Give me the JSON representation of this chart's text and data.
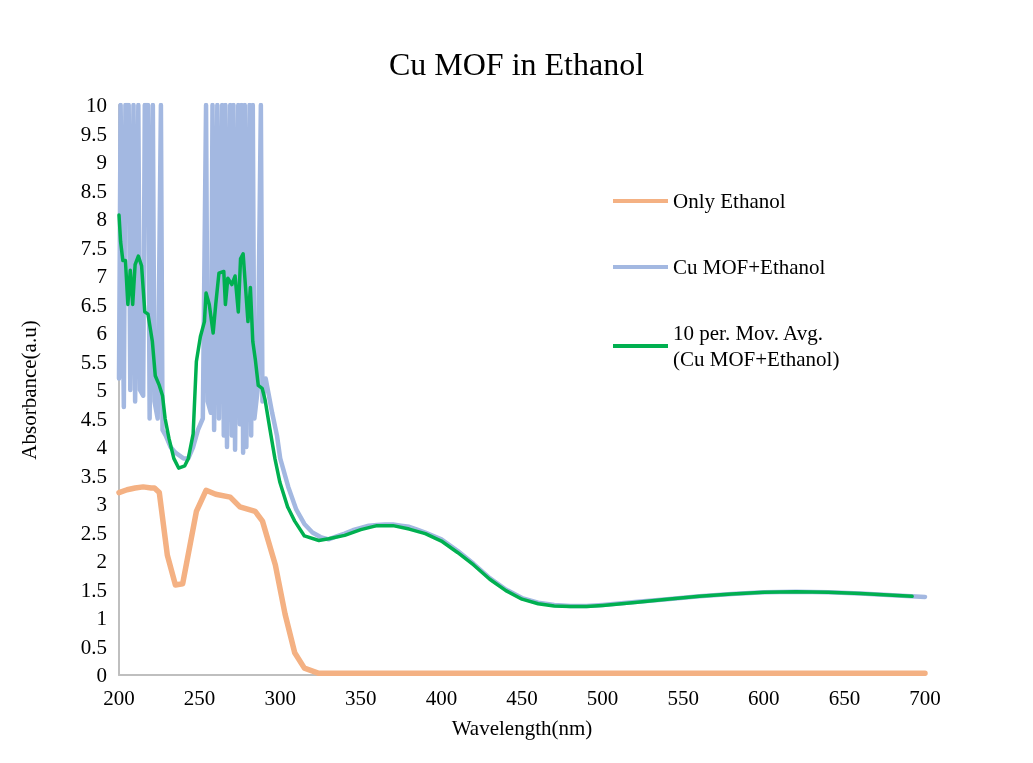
{
  "chart_data": {
    "type": "line",
    "title": "Cu MOF in Ethanol",
    "xlabel": "Wavelength(nm)",
    "ylabel": "Absorbance(a.u)",
    "xlim": [
      200,
      700
    ],
    "xticks": [
      200,
      250,
      300,
      350,
      400,
      450,
      500,
      550,
      600,
      650,
      700
    ],
    "ylim": [
      0,
      10
    ],
    "yticks": [
      0,
      0.5,
      1,
      1.5,
      2,
      2.5,
      3,
      3.5,
      4,
      4.5,
      5,
      5.5,
      6,
      6.5,
      7,
      7.5,
      8,
      8.5,
      9,
      9.5,
      10
    ],
    "grid": false,
    "legend": "right",
    "marker": "none",
    "line_style": "solid",
    "series": [
      {
        "name": "Only Ethanol",
        "color": "#f4b183",
        "x": [
          200,
          205,
          210,
          215,
          220,
          222,
          225,
          230,
          235,
          239.5,
          244,
          248,
          254,
          260,
          269,
          275,
          284.5,
          289,
          297,
          303,
          309,
          315,
          324,
          350,
          400,
          500,
          600,
          700
        ],
        "values": [
          3.2,
          3.25,
          3.28,
          3.3,
          3.28,
          3.28,
          3.2,
          2.1,
          1.58,
          1.6,
          2.27,
          2.87,
          3.24,
          3.17,
          3.12,
          2.95,
          2.87,
          2.7,
          1.93,
          1.07,
          0.39,
          0.12,
          0.03,
          0.03,
          0.03,
          0.03,
          0.03,
          0.03
        ]
      },
      {
        "name": "Cu MOF+Ethanol",
        "color": "#a3b8e1",
        "x": [
          200,
          201,
          203,
          204,
          206,
          207,
          209,
          210,
          212,
          213,
          215,
          216,
          218,
          219,
          221,
          222,
          224,
          226,
          227,
          229,
          232,
          235,
          240,
          243,
          246,
          249,
          252,
          254,
          255,
          257,
          258,
          259,
          261,
          262,
          264,
          265,
          266,
          267,
          269,
          270,
          271,
          272,
          274,
          275,
          276,
          277,
          278,
          279,
          281,
          282,
          283,
          284,
          286,
          288,
          289,
          291,
          293,
          295,
          298,
          300,
          305,
          310,
          315,
          320,
          325,
          330,
          335,
          340,
          345,
          350,
          355,
          360,
          365,
          370,
          375,
          380,
          385,
          390,
          400,
          410,
          420,
          430,
          440,
          450,
          460,
          470,
          480,
          490,
          500,
          520,
          540,
          560,
          580,
          600,
          620,
          640,
          660,
          680,
          700
        ],
        "values": [
          5.2,
          10,
          4.7,
          10,
          10,
          5,
          10,
          4.8,
          10,
          5,
          4.9,
          10,
          10,
          4.5,
          10,
          4.8,
          4.5,
          10,
          4.3,
          4.2,
          4,
          3.9,
          3.8,
          3.8,
          4,
          4.3,
          4.5,
          10,
          4.8,
          4.6,
          10,
          4.3,
          10,
          4.5,
          10,
          4.2,
          10,
          4,
          10,
          4.2,
          10,
          3.95,
          10,
          4.4,
          10,
          3.9,
          10,
          4,
          10,
          4.2,
          10,
          4.5,
          5,
          10,
          4.8,
          5.2,
          4.9,
          4.6,
          4.2,
          3.8,
          3.3,
          2.9,
          2.65,
          2.5,
          2.42,
          2.38,
          2.43,
          2.48,
          2.54,
          2.58,
          2.62,
          2.63,
          2.64,
          2.64,
          2.62,
          2.6,
          2.55,
          2.5,
          2.38,
          2.18,
          1.95,
          1.7,
          1.5,
          1.35,
          1.27,
          1.23,
          1.21,
          1.21,
          1.23,
          1.28,
          1.33,
          1.38,
          1.42,
          1.45,
          1.46,
          1.45,
          1.43,
          1.4,
          1.37
        ]
      },
      {
        "name": "10 per. Mov. Avg. (Cu MOF+Ethanol)",
        "color": "#00b050",
        "x": [
          200,
          201,
          202.4,
          204,
          205.5,
          207,
          208.5,
          210,
          212,
          214,
          216,
          218,
          220.7,
          222.5,
          225,
          227,
          228.6,
          231,
          234,
          237,
          240.8,
          243,
          246,
          248,
          250.5,
          253,
          254,
          256,
          258.4,
          260,
          262,
          265,
          266,
          267.5,
          270,
          272,
          274,
          275.4,
          277,
          278.5,
          280,
          281.5,
          283,
          284.5,
          286.4,
          288.8,
          290.6,
          293.7,
          296.7,
          299.8,
          304.6,
          309,
          315,
          324,
          330,
          340,
          350,
          360,
          370,
          380,
          390,
          400,
          410,
          420,
          430,
          440,
          450,
          460,
          470,
          480,
          490,
          500,
          520,
          540,
          560,
          580,
          600,
          620,
          640,
          660,
          680,
          692
        ],
        "values": [
          8.07,
          7.6,
          7.27,
          7.27,
          6.5,
          7.1,
          6.5,
          7.2,
          7.35,
          7.18,
          6.37,
          6.33,
          5.85,
          5.25,
          5.08,
          4.9,
          4.5,
          4.15,
          3.8,
          3.63,
          3.67,
          3.8,
          4.23,
          5.5,
          5.94,
          6.2,
          6.7,
          6.5,
          6,
          6.5,
          7.05,
          7.08,
          6.5,
          6.96,
          6.85,
          7,
          6.37,
          7.3,
          7.39,
          6.8,
          6.2,
          6.8,
          5.85,
          5.55,
          5.08,
          5.03,
          4.83,
          4.3,
          3.8,
          3.38,
          2.95,
          2.7,
          2.44,
          2.36,
          2.39,
          2.45,
          2.55,
          2.62,
          2.62,
          2.56,
          2.48,
          2.35,
          2.15,
          1.93,
          1.68,
          1.48,
          1.33,
          1.25,
          1.21,
          1.2,
          1.2,
          1.22,
          1.27,
          1.33,
          1.38,
          1.42,
          1.45,
          1.46,
          1.45,
          1.43,
          1.4,
          1.38
        ]
      }
    ]
  }
}
